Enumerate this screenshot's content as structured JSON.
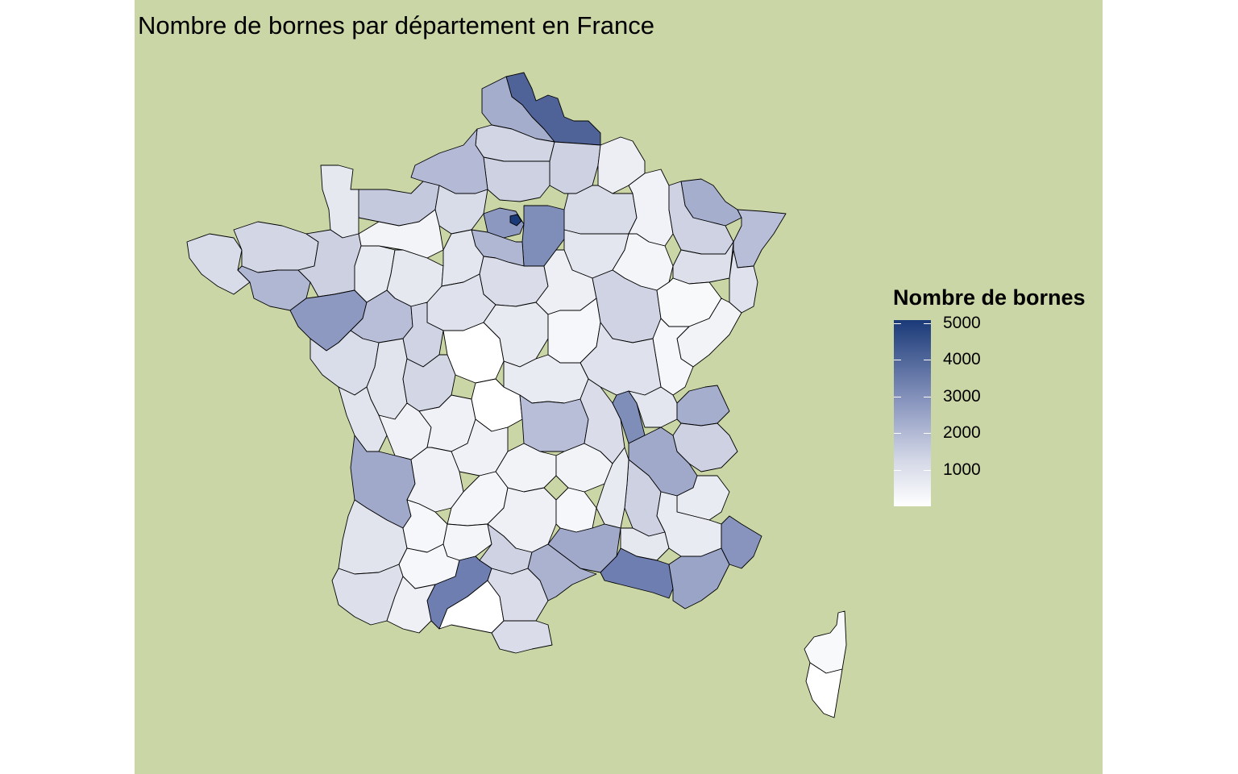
{
  "title": "Nombre de bornes par département en France",
  "legend": {
    "title": "Nombre de bornes",
    "breaks": [
      {
        "label": "5000",
        "value": 5000
      },
      {
        "label": "4000",
        "value": 4000
      },
      {
        "label": "3000",
        "value": 3000
      },
      {
        "label": "2000",
        "value": 2000
      },
      {
        "label": "1000",
        "value": 1000
      }
    ],
    "range": [
      0,
      5000
    ],
    "color_low": "#ffffff",
    "color_high": "#1a3a78"
  },
  "colors": {
    "background": "#cbd6a7",
    "border": "#000000"
  }
}
